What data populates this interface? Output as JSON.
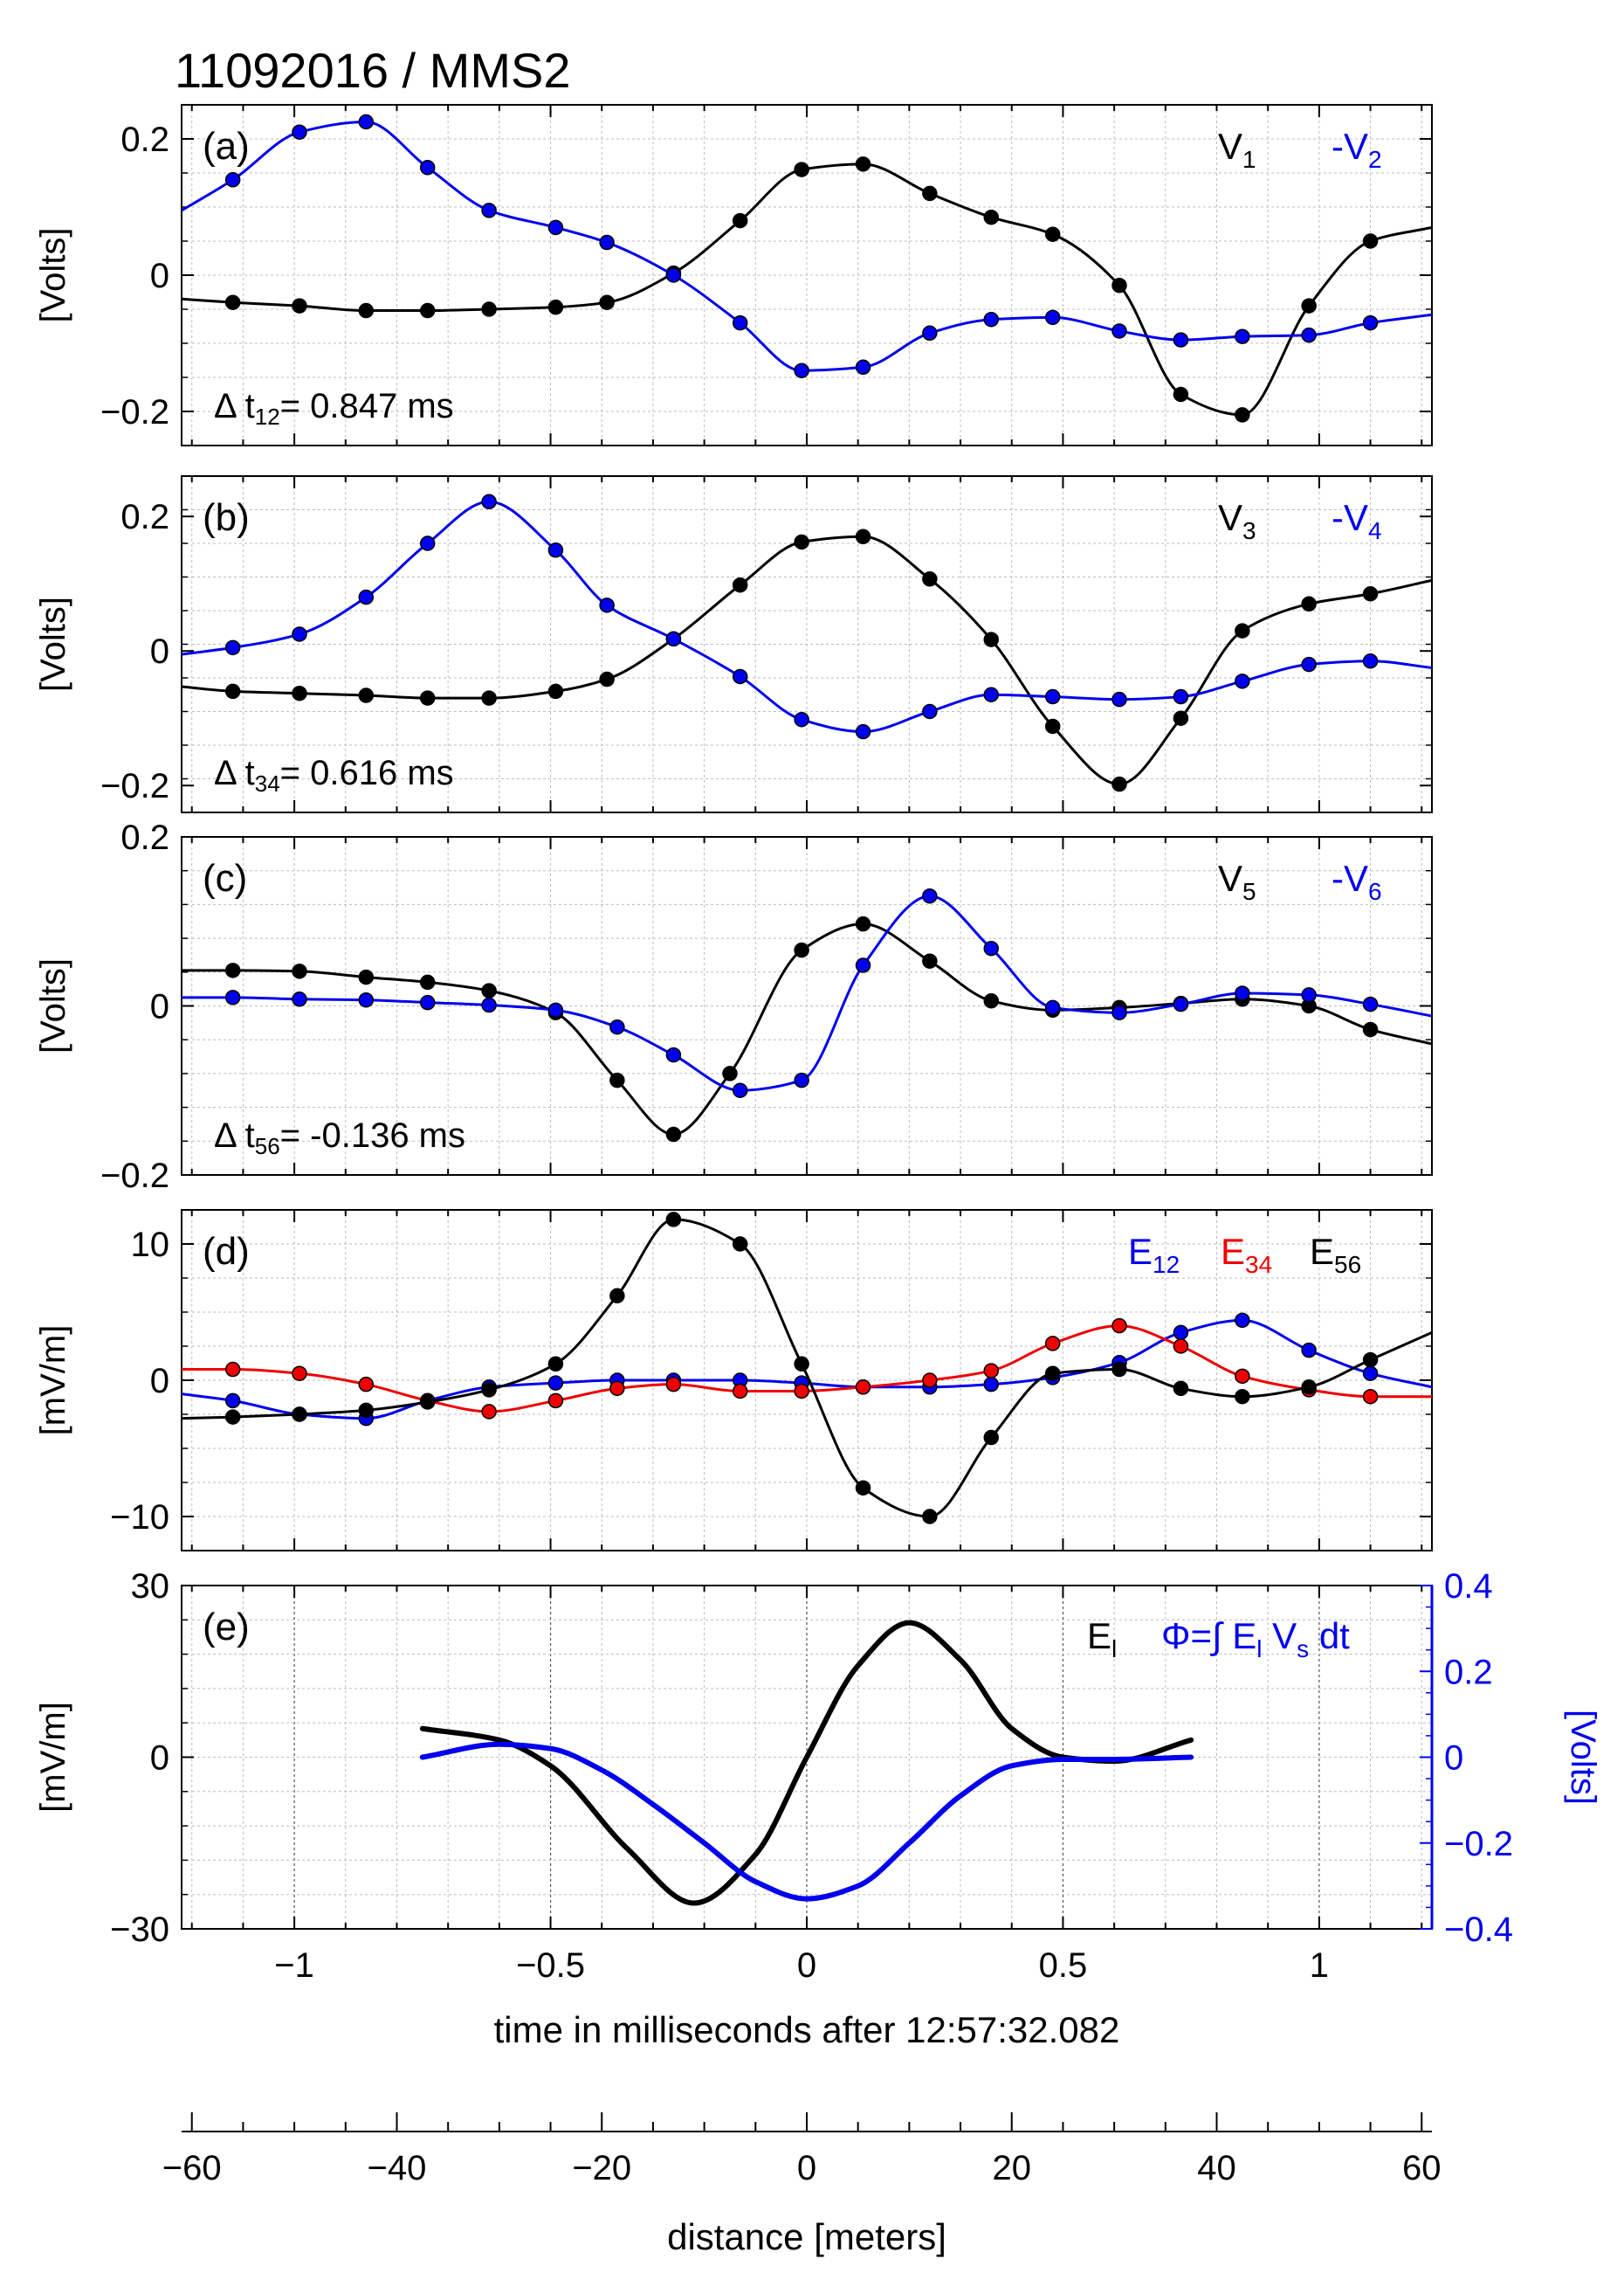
{
  "figure_title": "11092016 / MMS2",
  "colors": {
    "black": "#000000",
    "blue": "#0000ee",
    "red": "#ee0000",
    "grid": "#bdbdbd",
    "grid_major": "#555555"
  },
  "chart_data": [
    {
      "type": "line",
      "panel_label": "(a)",
      "ylabel": "[Volts]",
      "xlim": [
        -1.22,
        1.22
      ],
      "ylim": [
        -0.25,
        0.25
      ],
      "yticks": [
        {
          "v": -0.2,
          "t": "−0.2"
        },
        {
          "v": 0,
          "t": "0"
        },
        {
          "v": 0.2,
          "t": "0.2"
        }
      ],
      "annotation": {
        "main": "Δ t",
        "sub": "12",
        "rest": "= 0.847 ms"
      },
      "legend": [
        {
          "main": "V",
          "sub": "1",
          "color": "#000000"
        },
        {
          "main": "-V",
          "sub": "2",
          "color": "#0000ee"
        }
      ],
      "series": [
        {
          "name": "V1",
          "color": "#000000",
          "marker": "#000000",
          "x": [
            -1.22,
            -1.12,
            -0.99,
            -0.86,
            -0.74,
            -0.62,
            -0.49,
            -0.39,
            -0.26,
            -0.13,
            -0.01,
            0.11,
            0.24,
            0.36,
            0.48,
            0.61,
            0.73,
            0.85,
            0.98,
            1.1,
            1.22
          ],
          "y": [
            -0.035,
            -0.04,
            -0.045,
            -0.052,
            -0.052,
            -0.05,
            -0.047,
            -0.04,
            0.003,
            0.08,
            0.155,
            0.163,
            0.12,
            0.085,
            0.06,
            -0.015,
            -0.175,
            -0.205,
            -0.045,
            0.05,
            0.07
          ],
          "mx": [
            -1.12,
            -0.99,
            -0.86,
            -0.74,
            -0.62,
            -0.49,
            -0.39,
            -0.26,
            -0.13,
            -0.01,
            0.11,
            0.24,
            0.36,
            0.48,
            0.61,
            0.73,
            0.85,
            0.98,
            1.1
          ]
        },
        {
          "name": "-V2",
          "color": "#0000ee",
          "marker": "#0000ee",
          "x": [
            -1.22,
            -1.12,
            -0.99,
            -0.86,
            -0.74,
            -0.62,
            -0.49,
            -0.39,
            -0.26,
            -0.13,
            -0.01,
            0.11,
            0.24,
            0.36,
            0.48,
            0.61,
            0.73,
            0.85,
            0.98,
            1.1,
            1.22
          ],
          "y": [
            0.095,
            0.14,
            0.21,
            0.225,
            0.158,
            0.095,
            0.07,
            0.048,
            0.0,
            -0.07,
            -0.14,
            -0.135,
            -0.085,
            -0.065,
            -0.062,
            -0.082,
            -0.095,
            -0.09,
            -0.088,
            -0.07,
            -0.058
          ],
          "mx": [
            -1.12,
            -0.99,
            -0.86,
            -0.74,
            -0.62,
            -0.49,
            -0.39,
            -0.26,
            -0.13,
            -0.01,
            0.11,
            0.24,
            0.36,
            0.48,
            0.61,
            0.73,
            0.85,
            0.98,
            1.1
          ]
        }
      ]
    },
    {
      "type": "line",
      "panel_label": "(b)",
      "ylabel": "[Volts]",
      "xlim": [
        -1.22,
        1.22
      ],
      "ylim": [
        -0.24,
        0.26
      ],
      "yticks": [
        {
          "v": -0.2,
          "t": "−0.2"
        },
        {
          "v": 0,
          "t": "0"
        },
        {
          "v": 0.2,
          "t": "0.2"
        }
      ],
      "annotation": {
        "main": "Δ t",
        "sub": "34",
        "rest": "= 0.616 ms"
      },
      "legend": [
        {
          "main": "V",
          "sub": "3",
          "color": "#000000"
        },
        {
          "main": "-V",
          "sub": "4",
          "color": "#0000ee"
        }
      ],
      "series": [
        {
          "name": "V3",
          "color": "#000000",
          "marker": "#000000",
          "x": [
            -1.22,
            -1.12,
            -0.99,
            -0.86,
            -0.74,
            -0.62,
            -0.49,
            -0.39,
            -0.26,
            -0.13,
            -0.01,
            0.11,
            0.24,
            0.36,
            0.48,
            0.61,
            0.73,
            0.85,
            0.98,
            1.1,
            1.22
          ],
          "y": [
            -0.053,
            -0.06,
            -0.063,
            -0.066,
            -0.07,
            -0.07,
            -0.06,
            -0.042,
            0.018,
            0.098,
            0.162,
            0.17,
            0.107,
            0.017,
            -0.112,
            -0.198,
            -0.1,
            0.03,
            0.07,
            0.085,
            0.105
          ],
          "mx": [
            -1.12,
            -0.99,
            -0.86,
            -0.74,
            -0.62,
            -0.49,
            -0.39,
            -0.26,
            -0.13,
            -0.01,
            0.11,
            0.24,
            0.36,
            0.48,
            0.61,
            0.73,
            0.85,
            0.98,
            1.1
          ]
        },
        {
          "name": "-V4",
          "color": "#0000ee",
          "marker": "#0000ee",
          "x": [
            -1.22,
            -1.12,
            -0.99,
            -0.86,
            -0.74,
            -0.62,
            -0.49,
            -0.39,
            -0.26,
            -0.13,
            -0.01,
            0.11,
            0.24,
            0.36,
            0.48,
            0.61,
            0.73,
            0.85,
            0.98,
            1.1,
            1.22
          ],
          "y": [
            -0.005,
            0.005,
            0.025,
            0.08,
            0.16,
            0.222,
            0.15,
            0.068,
            0.018,
            -0.038,
            -0.102,
            -0.12,
            -0.09,
            -0.065,
            -0.068,
            -0.072,
            -0.068,
            -0.045,
            -0.02,
            -0.015,
            -0.025
          ],
          "mx": [
            -1.12,
            -0.99,
            -0.86,
            -0.74,
            -0.62,
            -0.49,
            -0.39,
            -0.26,
            -0.13,
            -0.01,
            0.11,
            0.24,
            0.36,
            0.48,
            0.61,
            0.73,
            0.85,
            0.98,
            1.1
          ]
        }
      ]
    },
    {
      "type": "line",
      "panel_label": "(c)",
      "ylabel": "[Volts]",
      "xlim": [
        -1.22,
        1.22
      ],
      "ylim": [
        -0.2,
        0.2
      ],
      "yticks": [
        {
          "v": -0.2,
          "t": "−0.2"
        },
        {
          "v": 0,
          "t": "0"
        },
        {
          "v": 0.2,
          "t": "0.2"
        }
      ],
      "annotation": {
        "main": "Δ t",
        "sub": "56",
        "rest": "= -0.136 ms"
      },
      "legend": [
        {
          "main": "V",
          "sub": "5",
          "color": "#000000"
        },
        {
          "main": "-V",
          "sub": "6",
          "color": "#0000ee"
        }
      ],
      "series": [
        {
          "name": "V5",
          "color": "#000000",
          "marker": "#000000",
          "x": [
            -1.22,
            -1.12,
            -0.99,
            -0.86,
            -0.74,
            -0.62,
            -0.49,
            -0.37,
            -0.26,
            -0.15,
            -0.01,
            0.11,
            0.24,
            0.36,
            0.48,
            0.61,
            0.73,
            0.85,
            0.98,
            1.1,
            1.22
          ],
          "y": [
            0.042,
            0.042,
            0.041,
            0.034,
            0.028,
            0.018,
            -0.008,
            -0.088,
            -0.152,
            -0.08,
            0.066,
            0.097,
            0.053,
            0.006,
            -0.005,
            -0.002,
            0.003,
            0.008,
            0.0,
            -0.028,
            -0.045
          ],
          "mx": [
            -1.12,
            -0.99,
            -0.86,
            -0.74,
            -0.62,
            -0.49,
            -0.37,
            -0.26,
            -0.15,
            -0.01,
            0.11,
            0.24,
            0.36,
            0.48,
            0.61,
            0.73,
            0.85,
            0.98,
            1.1
          ]
        },
        {
          "name": "-V6",
          "color": "#0000ee",
          "marker": "#0000ee",
          "x": [
            -1.22,
            -1.12,
            -0.99,
            -0.86,
            -0.74,
            -0.62,
            -0.49,
            -0.37,
            -0.26,
            -0.13,
            -0.01,
            0.11,
            0.24,
            0.36,
            0.48,
            0.61,
            0.73,
            0.85,
            0.98,
            1.1,
            1.22
          ],
          "y": [
            0.01,
            0.01,
            0.008,
            0.007,
            0.004,
            0.001,
            -0.005,
            -0.025,
            -0.058,
            -0.1,
            -0.088,
            0.048,
            0.13,
            0.068,
            -0.002,
            -0.008,
            0.002,
            0.015,
            0.013,
            0.002,
            -0.012
          ],
          "mx": [
            -1.12,
            -0.99,
            -0.86,
            -0.74,
            -0.62,
            -0.49,
            -0.37,
            -0.26,
            -0.13,
            -0.01,
            0.11,
            0.24,
            0.36,
            0.48,
            0.61,
            0.73,
            0.85,
            0.98,
            1.1
          ]
        }
      ]
    },
    {
      "type": "line",
      "panel_label": "(d)",
      "ylabel": "[mV/m]",
      "xlim": [
        -1.22,
        1.22
      ],
      "ylim": [
        -12.5,
        12.5
      ],
      "yticks": [
        {
          "v": -10,
          "t": "−10"
        },
        {
          "v": 0,
          "t": "0"
        },
        {
          "v": 10,
          "t": "10"
        }
      ],
      "legend": [
        {
          "main": "E",
          "sub": "12",
          "color": "#0000ee"
        },
        {
          "main": "E",
          "sub": "34",
          "color": "#ee0000"
        },
        {
          "main": "E",
          "sub": "56",
          "color": "#000000"
        }
      ],
      "series": [
        {
          "name": "E12",
          "color": "#0000ee",
          "marker": "#0000ee",
          "x": [
            -1.22,
            -1.12,
            -0.99,
            -0.86,
            -0.74,
            -0.62,
            -0.49,
            -0.37,
            -0.26,
            -0.13,
            -0.01,
            0.11,
            0.24,
            0.36,
            0.48,
            0.61,
            0.73,
            0.85,
            0.98,
            1.1,
            1.22
          ],
          "y": [
            -1.0,
            -1.5,
            -2.5,
            -2.8,
            -1.5,
            -0.5,
            -0.2,
            0.0,
            0.0,
            0.0,
            -0.2,
            -0.5,
            -0.5,
            -0.3,
            0.2,
            1.3,
            3.5,
            4.4,
            2.2,
            0.5,
            -0.5
          ],
          "mx": [
            -1.12,
            -0.99,
            -0.86,
            -0.74,
            -0.62,
            -0.49,
            -0.37,
            -0.26,
            -0.13,
            -0.01,
            0.11,
            0.24,
            0.36,
            0.48,
            0.61,
            0.73,
            0.85,
            0.98,
            1.1
          ]
        },
        {
          "name": "E34",
          "color": "#ee0000",
          "marker": "#ee0000",
          "x": [
            -1.22,
            -1.12,
            -0.99,
            -0.86,
            -0.74,
            -0.62,
            -0.49,
            -0.37,
            -0.26,
            -0.13,
            -0.01,
            0.11,
            0.24,
            0.36,
            0.48,
            0.61,
            0.73,
            0.85,
            0.98,
            1.1,
            1.22
          ],
          "y": [
            0.8,
            0.8,
            0.5,
            -0.3,
            -1.5,
            -2.3,
            -1.5,
            -0.6,
            -0.3,
            -0.8,
            -0.8,
            -0.5,
            0.0,
            0.7,
            2.7,
            4.0,
            2.5,
            0.3,
            -0.7,
            -1.2,
            -1.2
          ],
          "mx": [
            -1.12,
            -0.99,
            -0.86,
            -0.74,
            -0.62,
            -0.49,
            -0.37,
            -0.26,
            -0.13,
            -0.01,
            0.11,
            0.24,
            0.36,
            0.48,
            0.61,
            0.73,
            0.85,
            0.98,
            1.1
          ]
        },
        {
          "name": "E56",
          "color": "#000000",
          "marker": "#000000",
          "x": [
            -1.22,
            -1.12,
            -0.99,
            -0.86,
            -0.74,
            -0.62,
            -0.49,
            -0.37,
            -0.26,
            -0.13,
            -0.01,
            0.11,
            0.24,
            0.36,
            0.48,
            0.61,
            0.73,
            0.85,
            0.98,
            1.1,
            1.22
          ],
          "y": [
            -2.8,
            -2.7,
            -2.5,
            -2.2,
            -1.6,
            -0.7,
            1.2,
            6.2,
            11.8,
            10.0,
            1.2,
            -7.9,
            -10.0,
            -4.2,
            0.5,
            0.8,
            -0.6,
            -1.2,
            -0.5,
            1.5,
            3.5
          ],
          "mx": [
            -1.12,
            -0.99,
            -0.86,
            -0.74,
            -0.62,
            -0.49,
            -0.37,
            -0.26,
            -0.13,
            -0.01,
            0.11,
            0.24,
            0.36,
            0.48,
            0.61,
            0.73,
            0.85,
            0.98,
            1.1
          ]
        }
      ]
    },
    {
      "type": "line",
      "panel_label": "(e)",
      "ylabel": "[mV/m]",
      "ylabel_right": "[Volts]",
      "xlim": [
        -1.22,
        1.22
      ],
      "ylim": [
        -30,
        30
      ],
      "ylim_right": [
        -0.4,
        0.4
      ],
      "yticks": [
        {
          "v": -30,
          "t": "−30"
        },
        {
          "v": 0,
          "t": "0"
        },
        {
          "v": 30,
          "t": "30"
        }
      ],
      "yticks_right": [
        {
          "v": -0.4,
          "t": "−0.4"
        },
        {
          "v": -0.2,
          "t": "−0.2"
        },
        {
          "v": 0,
          "t": "0"
        },
        {
          "v": 0.2,
          "t": "0.2"
        },
        {
          "v": 0.4,
          "t": "0.4"
        }
      ],
      "xticks": [
        {
          "v": -1,
          "t": "−1"
        },
        {
          "v": -0.5,
          "t": "−0.5"
        },
        {
          "v": 0,
          "t": "0"
        },
        {
          "v": 0.5,
          "t": "0.5"
        },
        {
          "v": 1,
          "t": "1"
        }
      ],
      "xlabel": "time in milliseconds after 12:57:32.082",
      "legend_black": {
        "main": "E",
        "sub": "l"
      },
      "legend_blue": {
        "a": "Φ=∫ E",
        "sub1": "l",
        "b": " V",
        "sub2": "s",
        "c": " dt"
      },
      "series": [
        {
          "name": "El",
          "color": "#000000",
          "axis": "left",
          "x": [
            -0.75,
            -0.6,
            -0.5,
            -0.35,
            -0.22,
            -0.1,
            0.0,
            0.1,
            0.2,
            0.3,
            0.4,
            0.5,
            0.6,
            0.75
          ],
          "y": [
            5.0,
            3.0,
            -1.5,
            -16.0,
            -25.5,
            -17.0,
            0.0,
            16.0,
            23.5,
            17.0,
            5.0,
            0.0,
            -0.7,
            3.0
          ]
        },
        {
          "name": "Φ",
          "color": "#0000ee",
          "axis": "right",
          "x": [
            -0.75,
            -0.6,
            -0.5,
            -0.4,
            -0.3,
            -0.2,
            -0.1,
            0.0,
            0.1,
            0.2,
            0.3,
            0.4,
            0.5,
            0.6,
            0.75
          ],
          "y": [
            0.0,
            0.03,
            0.02,
            -0.03,
            -0.11,
            -0.2,
            -0.29,
            -0.33,
            -0.3,
            -0.2,
            -0.09,
            -0.02,
            -0.005,
            -0.005,
            0.0
          ]
        }
      ]
    }
  ],
  "distance_axis": {
    "xlim": [
      -61,
      61
    ],
    "xlabel": "distance [meters]",
    "ticks": [
      {
        "v": -60,
        "t": "−60"
      },
      {
        "v": -40,
        "t": "−40"
      },
      {
        "v": -20,
        "t": "−20"
      },
      {
        "v": 0,
        "t": "0"
      },
      {
        "v": 20,
        "t": "20"
      },
      {
        "v": 40,
        "t": "40"
      },
      {
        "v": 60,
        "t": "60"
      }
    ]
  }
}
